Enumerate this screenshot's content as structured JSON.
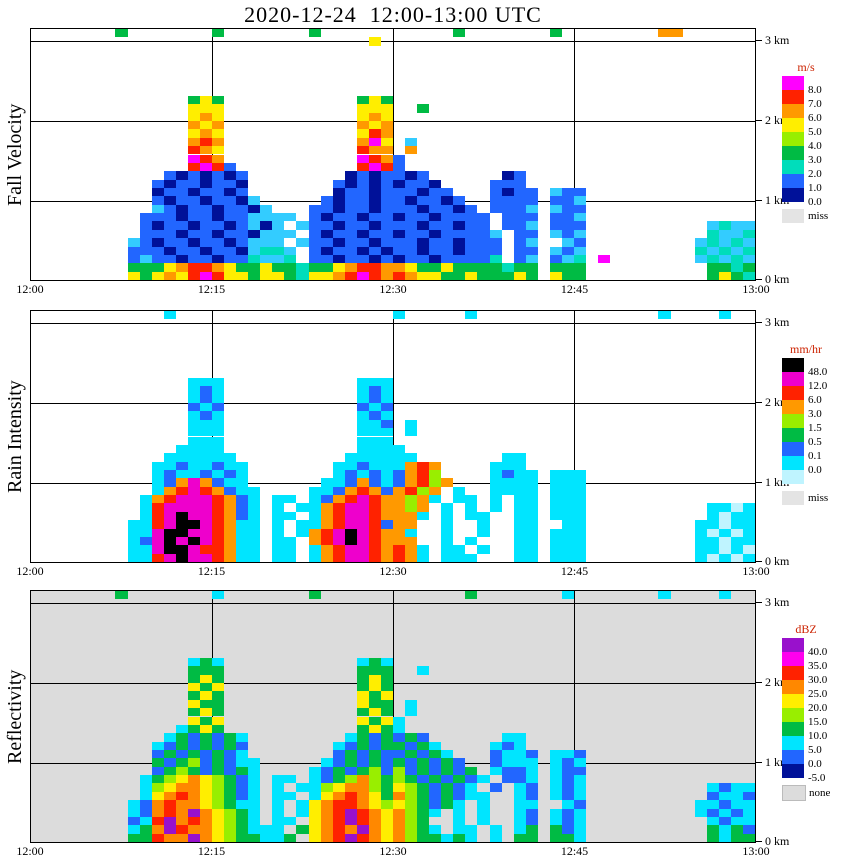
{
  "page_title": "2020-12-24  12:00-13:00 UTC",
  "chart_data": [
    {
      "type": "heatmap",
      "title": "Fall Velocity",
      "x_ticks": [
        "12:00",
        "12:15",
        "12:30",
        "12:45",
        "13:00"
      ],
      "y_ticks": [
        "3 km",
        "2 km",
        "1 km",
        "0 km"
      ],
      "x_range": [
        "12:00",
        "13:00"
      ],
      "y_range_km": [
        0,
        3
      ],
      "plot_bg": "#ffffff",
      "colorbar": {
        "title": "m/s",
        "title_color": "#cc2200",
        "colors": [
          "#ff00ff",
          "#ff2200",
          "#ff9900",
          "#ffee00",
          "#99ee00",
          "#00bb44",
          "#00ddbb",
          "#2266ff",
          "#001199"
        ],
        "ticks": [
          "8.0",
          "7.0",
          "6.0",
          "5.0",
          "4.0",
          "3.0",
          "2.0",
          "1.0",
          "0.0"
        ],
        "missing_label": "miss",
        "missing_color": "#e4e4e4"
      },
      "palette": {
        "m": "#ff00ff",
        "r": "#ff2200",
        "o": "#ff9900",
        "y": "#ffee00",
        "c": "#99ee00",
        "g": "#00bb44",
        "t": "#00ddbb",
        "b": "#33ccff",
        "B": "#2266ff",
        "N": "#001199"
      },
      "grid": [
        [
          ".......g..",
          ".....g....",
          "...g......",
          ".....g....",
          "...g......",
          "..oo......"
        ],
        [
          "..........",
          "..........",
          "........y.",
          "..........",
          "..........",
          ".........."
        ],
        [
          "..........",
          "..........",
          "..........",
          "..........",
          "..........",
          ".........."
        ],
        [
          "..........",
          "..........",
          "..........",
          "..........",
          "..........",
          ".........."
        ],
        [
          "..........",
          "..........",
          "..........",
          "..........",
          "..........",
          ".........."
        ],
        [
          "..........",
          "..........",
          "..........",
          "..........",
          "..........",
          ".........."
        ],
        [
          "..........",
          "..........",
          "..........",
          "..........",
          "..........",
          ".........."
        ],
        [
          "..........",
          "..........",
          "..........",
          "..........",
          "..........",
          ".........."
        ],
        [
          "..........",
          "...gyg....",
          ".......gyg",
          "..........",
          "..........",
          ".........."
        ],
        [
          "..........",
          "...yyy....",
          ".......yyy",
          "..g.......",
          "..........",
          ".........."
        ],
        [
          "..........",
          "...yoy....",
          ".......yoy",
          "..........",
          "..........",
          ".........."
        ],
        [
          "..........",
          "...oyo....",
          ".......oyo",
          "..........",
          "..........",
          ".........."
        ],
        [
          "..........",
          "...yoy....",
          ".......yro",
          "..........",
          "..........",
          ".........."
        ],
        [
          "..........",
          "...oro....",
          ".......omy",
          ".b........",
          "..........",
          ".........."
        ],
        [
          "..........",
          "...roy....",
          ".......roo",
          ".o........",
          "..........",
          ".........."
        ],
        [
          "..........",
          "...mro....",
          ".......mro",
          "B.........",
          "..........",
          ".........."
        ],
        [
          "..........",
          "...rmrB...",
          ".......rmr",
          "B.........",
          "..........",
          ".........."
        ],
        [
          "..........",
          ".BNBNBNB..",
          "......NBNB",
          "BNB......N",
          "B.........",
          ".........."
        ],
        [
          "..........",
          "BNBBNBBN..",
          ".....BNBNB",
          "NBBN....BB",
          "B.........",
          ".........."
        ],
        [
          "..........",
          "NBBNBBNB..",
          ".....NBBNB",
          "BBNBB...BN",
          "BB.bBB....",
          ".........."
        ],
        [
          "..........",
          "BNBBNBBNb.",
          "....BNBBNB",
          "BNBBNB..BB",
          "BB.BBb....",
          ".........."
        ],
        [
          "..........",
          "bBNBBNBBNb",
          "...BBNBBNB",
          "BBNBBNB.BB",
          "Bb.bBB....",
          ".........."
        ],
        [
          ".........B",
          "BBNBBNBBbb",
          "bb.BNBBNBB",
          "NBBNBBBB.B",
          "BB.BBb....",
          ".........."
        ],
        [
          ".........B",
          "NBBNBBNBbN",
          "b.bBBNBBNB",
          "BBNBBNBB.B",
          "Bb.BBB....",
          "......btbb"
        ],
        [
          ".........B",
          "BBNBBNBBNb",
          "bb.BNBBNBB",
          "NBBNBBBBb.",
          "BB.bBb....",
          "......tbbt"
        ],
        [
          "........bB",
          "NBBNBBNBbb",
          "b.bBBNBBNB",
          "BBNBBNBBB.",
          "Bb..bB....",
          ".....btbtb"
        ],
        [
          "........BB",
          "BNBBNBBNbt",
          "tb.BNBBNBN",
          "BBNBBNBBB.",
          "BB.bBb....",
          ".....tbtbt"
        ],
        [
          "........Bb",
          "BBNBBNBBtb",
          "bt.BBNBBNB",
          "NBBNBBBBt.",
          "Bb.Bbt.m..",
          ".....btbtb"
        ],
        [
          "........gg",
          "gyorroyggy",
          "ggtggyorro",
          "oyggyggggt",
          "gg.ggg....",
          "......ggtg"
        ],
        [
          "........yg",
          "yoyrmryygy",
          "ygtyyormro",
          "royyggyggg",
          "yg.ygg....",
          "......gygt"
        ]
      ]
    },
    {
      "type": "heatmap",
      "title": "Rain Intensity",
      "x_ticks": [
        "12:00",
        "12:15",
        "12:30",
        "12:45",
        "13:00"
      ],
      "y_ticks": [
        "3 km",
        "2 km",
        "1 km",
        "0 km"
      ],
      "x_range": [
        "12:00",
        "13:00"
      ],
      "y_range_km": [
        0,
        3
      ],
      "plot_bg": "#ffffff",
      "colorbar": {
        "title": "mm/hr",
        "title_color": "#cc2200",
        "colors": [
          "#000000",
          "#ee00cc",
          "#ff2200",
          "#ff9900",
          "#99ee00",
          "#00bb44",
          "#2266ff",
          "#00e5ff",
          "#bff4ff"
        ],
        "ticks": [
          "48.0",
          "12.0",
          "6.0",
          "3.0",
          "1.5",
          "0.5",
          "0.1",
          "0.0"
        ],
        "missing_label": "miss",
        "missing_color": "#e4e4e4"
      },
      "palette": {
        "K": "#000000",
        "m": "#ee00cc",
        "r": "#ff2200",
        "o": "#ff9900",
        "c": "#99ee00",
        "g": "#00bb44",
        "B": "#2266ff",
        "t": "#00e5ff",
        "p": "#bff4ff"
      },
      "grid": [
        [
          "..........",
          ".t........",
          "..........",
          "t.....t...",
          "..........",
          "..t....t.."
        ],
        [
          "..........",
          "..........",
          "..........",
          "..........",
          "..........",
          ".........."
        ],
        [
          "..........",
          "..........",
          "..........",
          "..........",
          "..........",
          ".........."
        ],
        [
          "..........",
          "..........",
          "..........",
          "..........",
          "..........",
          ".........."
        ],
        [
          "..........",
          "..........",
          "..........",
          "..........",
          "..........",
          ".........."
        ],
        [
          "..........",
          "..........",
          "..........",
          "..........",
          "..........",
          ".........."
        ],
        [
          "..........",
          "..........",
          "..........",
          "..........",
          "..........",
          ".........."
        ],
        [
          "..........",
          "..........",
          "..........",
          "..........",
          "..........",
          ".........."
        ],
        [
          "..........",
          "...ttt....",
          ".......ttt",
          "..........",
          "..........",
          ".........."
        ],
        [
          "..........",
          "...tBt....",
          ".......tBt",
          "..........",
          "..........",
          ".........."
        ],
        [
          "..........",
          "...tBt....",
          ".......tBt",
          "..........",
          "..........",
          ".........."
        ],
        [
          "..........",
          "...BtB....",
          ".......BtB",
          "..........",
          "..........",
          ".........."
        ],
        [
          "..........",
          "...tBt....",
          ".......tBt",
          "..........",
          "..........",
          ".........."
        ],
        [
          "..........",
          "...ttt....",
          ".......ttB",
          ".t........",
          "..........",
          ".........."
        ],
        [
          "..........",
          "...ttt....",
          ".......ttt",
          ".t........",
          "..........",
          ".........."
        ],
        [
          "..........",
          "...ttt....",
          ".......ttt",
          "..........",
          "..........",
          ".........."
        ],
        [
          "..........",
          "..tttt....",
          ".......ttt",
          "t.........",
          "..........",
          ".........."
        ],
        [
          "..........",
          ".tttttt...",
          "......tttt",
          "tt.......t",
          "t.........",
          ".........."
        ],
        [
          "..........",
          "ttBttBtt..",
          ".....ttBtt",
          "toro....tt",
          "t.........",
          ".........."
        ],
        [
          "..........",
          "tBttBtBt..",
          ".....tBtBt",
          "Borc....tB",
          "tt.ttt....",
          ".........."
        ],
        [
          "..........",
          "tBomoBtt..",
          "....ttBoBt",
          "Borco...tt",
          "tt.ttt....",
          ".........."
        ],
        [
          "..........",
          "tormroBtt.",
          "...ttBoroB",
          "orco.t..tt",
          "tt.ttt....",
          ".........."
        ],
        [
          ".........t",
          "ormmmroBt.",
          "tt.tBormro",
          "ocot.tt.t.",
          "tt.ttt....",
          ".........."
        ],
        [
          ".........t",
          "rmmmmroBt.",
          "t.ttormmro",
          "oco.t.t.t.",
          "tt.ttt....",
          "......ttpt"
        ],
        [
          ".........t",
          "rmKmmroBt.",
          "tt.tormmro",
          "oot.t.tt..",
          "tt.ttt....",
          "......tptt"
        ],
        [
          "........tt",
          "rmKKmrott.",
          "t.ttormmrB",
          "oo..t..t..",
          "tt..tt....",
          ".....ttptt"
        ],
        [
          "........tt",
          "mKKmmrott.",
          "t.tormKmro",
          "ot..t..t..",
          "tt.ttt....",
          ".....tptpt"
        ],
        [
          "........tB",
          "mKmKmrott.",
          "tt.ormKmro",
          "oo..t.t...",
          "tt.ttt....",
          ".....ttptt"
        ],
        [
          "........tt",
          "mKKmrrott.",
          "tt.tormmro",
          "rot.tt.t..",
          "tt.ttt....",
          ".....ttptp"
        ],
        [
          "........tt",
          "rmKmmrott.",
          "tt.tormmro",
          "rot.ttt...",
          "tt.ttt....",
          ".....tptpt"
        ]
      ]
    },
    {
      "type": "heatmap",
      "title": "Reflectivity",
      "x_ticks": [
        "12:00",
        "12:15",
        "12:30",
        "12:45",
        "13:00"
      ],
      "y_ticks": [
        "3 km",
        "2 km",
        "1 km",
        "0 km"
      ],
      "x_range": [
        "12:00",
        "13:00"
      ],
      "y_range_km": [
        0,
        3
      ],
      "plot_bg": "#dcdcdc",
      "colorbar": {
        "title": "dBZ",
        "title_color": "#cc2200",
        "colors": [
          "#9911cc",
          "#ff00ee",
          "#ff2200",
          "#ff8800",
          "#ffee00",
          "#99ee00",
          "#00bb44",
          "#00e5ff",
          "#2266ff",
          "#001199"
        ],
        "ticks": [
          "40.0",
          "35.0",
          "30.0",
          "25.0",
          "20.0",
          "15.0",
          "10.0",
          "5.0",
          "0.0",
          "-5.0"
        ],
        "missing_label": "none",
        "missing_color": "#dcdcdc"
      },
      "palette": {
        "V": "#9911cc",
        "m": "#ff00ee",
        "r": "#ff2200",
        "o": "#ff8800",
        "y": "#ffee00",
        "c": "#99ee00",
        "g": "#00bb44",
        "t": "#00e5ff",
        "B": "#2266ff",
        "N": "#001199"
      },
      "grid": [
        [
          ".......g..",
          ".....t....",
          "...g......",
          "......g...",
          "....t.....",
          "..t....t.."
        ],
        [
          "..........",
          "..........",
          "..........",
          "..........",
          "..........",
          ".........."
        ],
        [
          "..........",
          "..........",
          "..........",
          "..........",
          "..........",
          ".........."
        ],
        [
          "..........",
          "..........",
          "..........",
          "..........",
          "..........",
          ".........."
        ],
        [
          "..........",
          "..........",
          "..........",
          "..........",
          "..........",
          ".........."
        ],
        [
          "..........",
          "..........",
          "..........",
          "..........",
          "..........",
          ".........."
        ],
        [
          "..........",
          "..........",
          "..........",
          "..........",
          "..........",
          ".........."
        ],
        [
          "..........",
          "..........",
          "..........",
          "..........",
          "..........",
          ".........."
        ],
        [
          "..........",
          "...tgt....",
          ".......tgt",
          "..........",
          "..........",
          ".........."
        ],
        [
          "..........",
          "...ggg....",
          ".......ggg",
          "..t.......",
          "..........",
          ".........."
        ],
        [
          "..........",
          "...gyg....",
          ".......gyg",
          "..........",
          "..........",
          ".........."
        ],
        [
          "..........",
          "...ygy....",
          ".......gyg",
          "..........",
          "..........",
          ".........."
        ],
        [
          "..........",
          "...gyg....",
          ".......ygy",
          "..........",
          "..........",
          ".........."
        ],
        [
          "..........",
          "...ygg....",
          ".......ygg",
          ".t........",
          "..........",
          ".........."
        ],
        [
          "..........",
          "...gyg....",
          ".......gyg",
          ".t........",
          "..........",
          ".........."
        ],
        [
          "..........",
          "...ygy....",
          ".......ygy",
          "t.........",
          "..........",
          ".........."
        ],
        [
          "..........",
          "..tgyg....",
          ".......gyg",
          "t.........",
          "..........",
          ".........."
        ],
        [
          "..........",
          ".tgBgBgt..",
          "......tgBg",
          "BgB......t",
          "t.........",
          ".........."
        ],
        [
          "..........",
          "tBgBgBgB..",
          ".....tBgBg",
          "gBgt....tB",
          "t.........",
          ".........."
        ],
        [
          "..........",
          "BgBgBgBt..",
          ".....BgBgB",
          "BgBgt...Bt",
          "tB.ttB....",
          ".........."
        ],
        [
          "..........",
          "gBgcBgBtt.",
          "....tBgBgB",
          "gBgBgB..Bt",
          "tt.tBt....",
          ".........."
        ],
        [
          "..........",
          "BgcgBgBgt.",
          "...tBgBgcB",
          "cBgBgBg.tB",
          "Bt.tBB....",
          ".........."
        ],
        [
          ".........t",
          "gcyoycgBt.",
          "tt.tBgcocg",
          "cgBgBgBt.B",
          "Bt.tBt....",
          ".........."
        ],
        [
          ".........t",
          "cyooycgBt.",
          "t.ttcyoocg",
          "ycgBgBt.B.",
          "tB.tBt....",
          "......tBtt"
        ],
        [
          ".........t",
          "yoroycgBt.",
          "tt.tyoroyg",
          "ocgBgBtt..",
          "tB.tBt....",
          "......BttB"
        ],
        [
          "........tB",
          "orooycgtt.",
          "t.tyorroyc",
          "ycgBgt.t..",
          "tt..tB....",
          ".....ttBtt"
        ],
        [
          "........tB",
          "oroVoycgt.",
          "t.tyorVroy",
          "ocgt.t.t..",
          "tB.tBt....",
          ".....tBtBt"
        ],
        [
          "........Bt",
          "rVoroycgt.",
          "tt.yorVroy",
          "ocg..t.t..",
          "tB.tBt....",
          "......tBtt"
        ],
        [
          "........tg",
          "oVrooycgtt",
          "t.gyoroVoy",
          "ocgt.tt.t.",
          "tg.gBt....",
          "......gtgB"
        ],
        [
          "........gg",
          "rooVoycggt",
          "tg.yorVroy",
          "ocggtgt.t.",
          "gg.ggt....",
          "......gtgg"
        ]
      ]
    }
  ]
}
